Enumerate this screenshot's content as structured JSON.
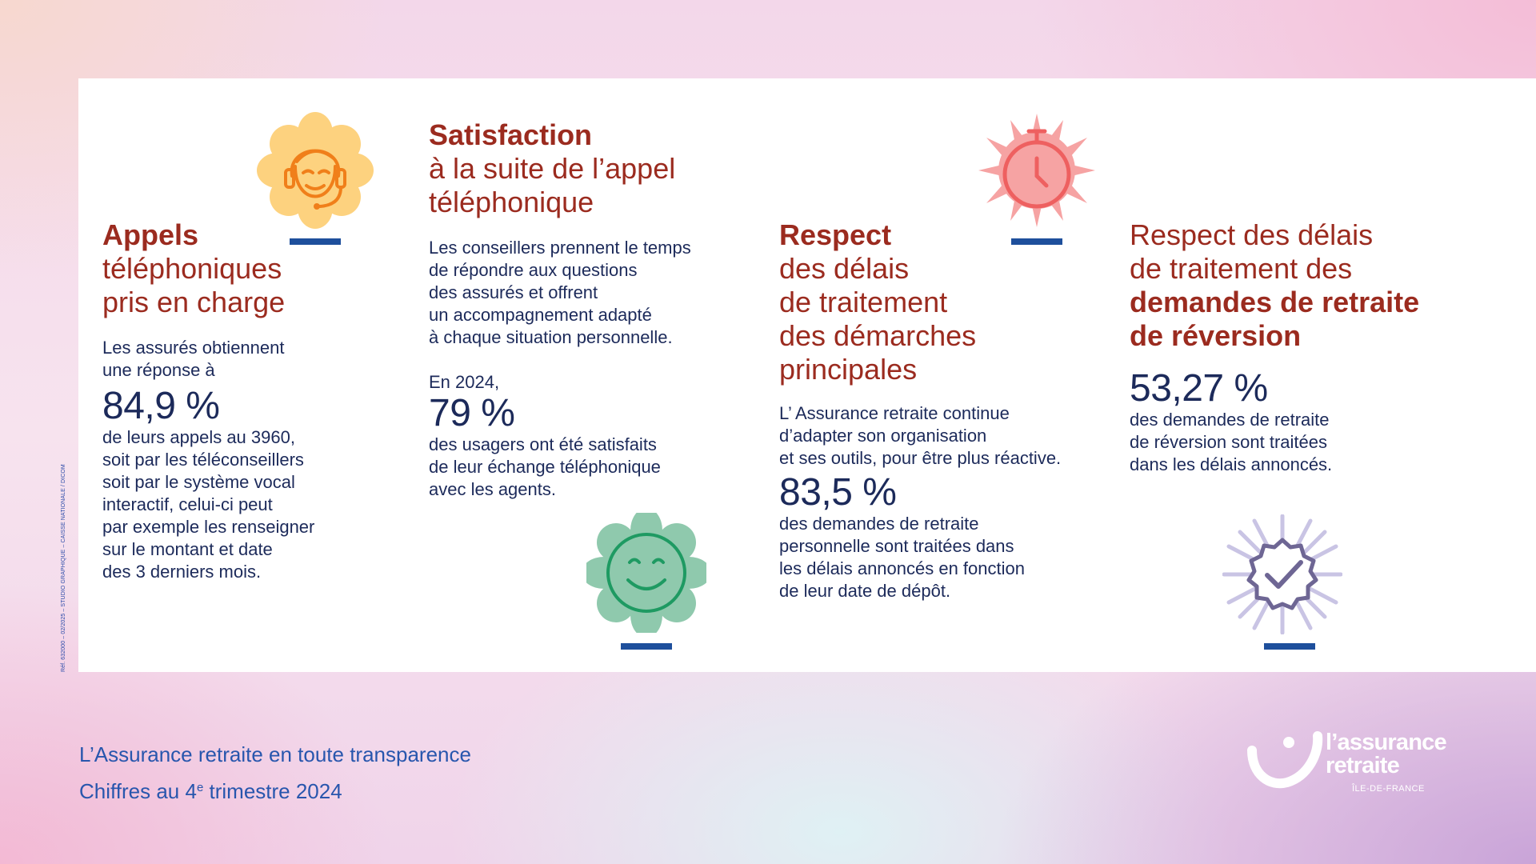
{
  "credit": "Réf. 632000 – 02/2025 – STUDIO GRAPHIQUE – CAISSE NATIONALE / DICOM",
  "col1": {
    "title_bold": "Appels",
    "title_rest_1": "téléphoniques",
    "title_rest_2": "pris en charge",
    "intro_1": "Les assurés obtiennent",
    "intro_2": "une réponse à",
    "stat": "84,9 %",
    "desc": [
      "de leurs appels au 3960,",
      "soit par les téléconseillers",
      "soit par le système vocal",
      "interactif, celui-ci peut",
      "par exemple les renseigner",
      "sur le montant et date",
      "des 3 derniers mois."
    ],
    "icon": "headset-agent-icon"
  },
  "col2": {
    "title_bold": "Satisfaction",
    "title_rest_1": "à la suite de l’appel",
    "title_rest_2": "téléphonique",
    "intro": [
      "Les conseillers prennent le temps",
      "de répondre aux questions",
      "des assurés et offrent",
      "un accompagnement adapté",
      "à chaque situation personnelle."
    ],
    "year": "En 2024,",
    "stat": "79 %",
    "desc": [
      "des usagers ont été satisfaits",
      "de leur échange téléphonique",
      "avec les agents."
    ],
    "icon": "smiley-icon"
  },
  "col3": {
    "title_bold": "Respect",
    "title_rest": [
      "des délais",
      "de traitement",
      "des démarches",
      "principales"
    ],
    "intro": [
      "L’ Assurance retraite continue",
      "d’adapter son organisation",
      "et ses outils, pour être plus réactive."
    ],
    "stat": "83,5 %",
    "desc": [
      "des demandes de retraite",
      "personnelle sont traitées dans",
      "les délais annoncés en fonction",
      "de leur date de dépôt."
    ],
    "icon": "stopwatch-icon"
  },
  "col4": {
    "title_rest_1": "Respect des délais",
    "title_rest_2": "de traitement des",
    "title_bold_1": "demandes de retraite",
    "title_bold_2": "de réversion",
    "stat": "53,27 %",
    "desc": [
      "des demandes de retraite",
      "de réversion sont traitées",
      "dans les délais annoncés."
    ],
    "icon": "check-badge-icon"
  },
  "footer": {
    "line1": "L’Assurance retraite en toute transparence",
    "line2_pre": "Chiffres au 4",
    "line2_sup": "e",
    "line2_post": " trimestre 2024"
  },
  "logo": {
    "line1": "l’assurance",
    "line2": "retraite",
    "sub": "ÎLE-DE-FRANCE"
  },
  "colors": {
    "title_red": "#9b2b1f",
    "body_navy": "#1c2a5a",
    "bar_blue": "#1e4f9c",
    "footer_blue": "#2856ad",
    "icon_orange": "#f07f1a",
    "icon_yellow": "#fdd27f",
    "icon_green": "#1e9a62",
    "icon_mint": "#8fc9ad",
    "icon_red": "#ee6060",
    "icon_pink": "#f6a3a3",
    "icon_purple": "#6e6694",
    "icon_lavender": "#c9c4e4"
  }
}
